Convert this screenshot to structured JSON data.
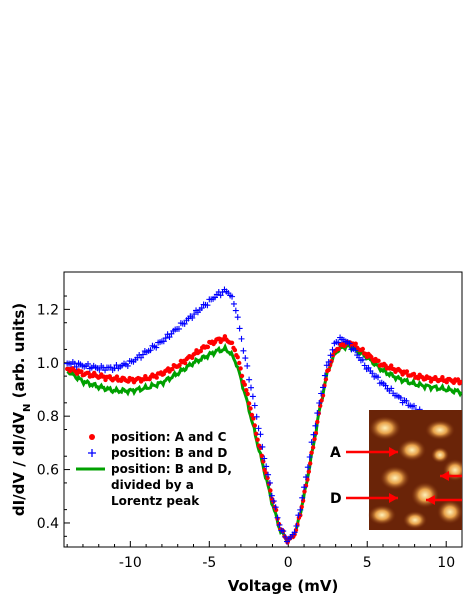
{
  "chart_data": {
    "type": "scatter",
    "xlabel": "Voltage (mV)",
    "ylabel": "dI/dV / dI/dV",
    "ylabel_sub": "N",
    "ylabel_suffix": " (arb. units)",
    "xlim": [
      -14.2,
      11
    ],
    "ylim": [
      0.31,
      1.34
    ],
    "xticks": [
      -10,
      -5,
      0,
      5,
      10
    ],
    "xtick_labels": [
      "-10",
      "-5",
      "0",
      "5",
      "10"
    ],
    "yticks": [
      0.4,
      0.6,
      0.8,
      1.0,
      1.2
    ],
    "ytick_labels": [
      "0.4",
      "0.6",
      "0.8",
      "1.0",
      "1.2"
    ],
    "grid": false,
    "legend_position": "lower-left",
    "series": [
      {
        "name": "position: A and C",
        "marker": "dot",
        "color": "#ff0000",
        "x": [
          -14,
          -13,
          -12,
          -11,
          -10,
          -9,
          -8,
          -7,
          -6,
          -5,
          -4.5,
          -4,
          -3.7,
          -3.3,
          -3,
          -2.5,
          -2,
          -1.5,
          -1,
          -0.5,
          0,
          0.5,
          1,
          1.5,
          2,
          2.5,
          3,
          3.5,
          4,
          5,
          6,
          7,
          8,
          9,
          10,
          11
        ],
        "y": [
          0.98,
          0.96,
          0.95,
          0.94,
          0.935,
          0.94,
          0.96,
          0.99,
          1.03,
          1.07,
          1.085,
          1.09,
          1.08,
          1.04,
          0.97,
          0.86,
          0.73,
          0.61,
          0.49,
          0.38,
          0.33,
          0.37,
          0.5,
          0.66,
          0.83,
          0.97,
          1.05,
          1.07,
          1.075,
          1.03,
          0.99,
          0.97,
          0.95,
          0.94,
          0.935,
          0.93
        ]
      },
      {
        "name": "position: B and D",
        "marker": "plus",
        "color": "#0000ff",
        "x": [
          -14,
          -13,
          -12,
          -11,
          -10,
          -9,
          -8,
          -7,
          -6,
          -5,
          -4.5,
          -4,
          -3.7,
          -3.3,
          -3,
          -2.5,
          -2,
          -1.5,
          -1,
          -0.5,
          0,
          0.5,
          1,
          1.5,
          2,
          2.5,
          3,
          3.5,
          4,
          5,
          6,
          7,
          8,
          9,
          10,
          11
        ],
        "y": [
          1.0,
          0.99,
          0.98,
          0.98,
          1.0,
          1.04,
          1.08,
          1.13,
          1.18,
          1.23,
          1.255,
          1.27,
          1.26,
          1.2,
          1.1,
          0.95,
          0.8,
          0.64,
          0.5,
          0.38,
          0.33,
          0.38,
          0.53,
          0.7,
          0.86,
          1.0,
          1.08,
          1.09,
          1.06,
          0.98,
          0.92,
          0.87,
          0.83,
          0.79,
          0.755,
          0.72
        ]
      },
      {
        "name": "position: B and D, divided by a Lorentz peak",
        "marker": "line",
        "color": "#00a000",
        "x": [
          -14,
          -13,
          -12,
          -11,
          -10,
          -9,
          -8,
          -7,
          -6,
          -5,
          -4.5,
          -4,
          -3.7,
          -3.3,
          -3,
          -2.5,
          -2,
          -1.5,
          -1,
          -0.5,
          0,
          0.5,
          1,
          1.5,
          2,
          2.5,
          3,
          3.5,
          4,
          5,
          6,
          7,
          8,
          9,
          10,
          11
        ],
        "y": [
          0.97,
          0.93,
          0.91,
          0.895,
          0.895,
          0.905,
          0.925,
          0.96,
          1.0,
          1.03,
          1.045,
          1.05,
          1.04,
          1.0,
          0.94,
          0.83,
          0.71,
          0.59,
          0.47,
          0.37,
          0.33,
          0.37,
          0.5,
          0.66,
          0.83,
          0.97,
          1.04,
          1.06,
          1.06,
          1.02,
          0.97,
          0.94,
          0.92,
          0.91,
          0.9,
          0.89
        ]
      }
    ],
    "legend": [
      {
        "lines": [
          "position: A and C"
        ],
        "marker": "dot",
        "color": "#ff0000"
      },
      {
        "lines": [
          "position: B and D"
        ],
        "marker": "plus",
        "color": "#0000ff"
      },
      {
        "lines": [
          "position: B and D,",
          "divided by a",
          "Lorentz peak"
        ],
        "marker": "line",
        "color": "#00a000"
      }
    ],
    "inset": {
      "labels": [
        "A",
        "D"
      ],
      "arrow_color": "#ff0000"
    }
  }
}
